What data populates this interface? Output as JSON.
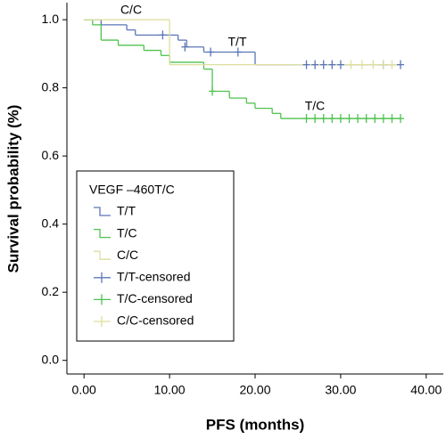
{
  "chart_data": {
    "type": "step",
    "xlabel": "PFS (months)",
    "ylabel": "Survival probability (%)",
    "xlim": [
      -2,
      42
    ],
    "ylim": [
      -0.04,
      1.05
    ],
    "xticks": [
      {
        "value": 0,
        "label": "0.00"
      },
      {
        "value": 10,
        "label": "10.00"
      },
      {
        "value": 20,
        "label": "20.00"
      },
      {
        "value": 30,
        "label": "30.00"
      },
      {
        "value": 40,
        "label": "40.00"
      }
    ],
    "yticks": [
      {
        "value": 0,
        "label": "0.0"
      },
      {
        "value": 0.2,
        "label": "0.2"
      },
      {
        "value": 0.4,
        "label": "0.4"
      },
      {
        "value": 0.6,
        "label": "0.6"
      },
      {
        "value": 0.8,
        "label": "0.8"
      },
      {
        "value": 1,
        "label": "1.0"
      }
    ],
    "legend_title": "VEGF –460T/C",
    "annotations": [
      "C/C",
      "T/T",
      "T/C"
    ],
    "series": [
      {
        "name": "T/T",
        "color": "#5b76b8",
        "kind": "step",
        "x": [
          0,
          2,
          5,
          6,
          11,
          12,
          14,
          20,
          37
        ],
        "values": [
          1.0,
          0.985,
          0.97,
          0.955,
          0.94,
          0.92,
          0.905,
          0.868,
          0.868
        ]
      },
      {
        "name": "T/C",
        "color": "#4fc24f",
        "kind": "step",
        "x": [
          0,
          1,
          2,
          4,
          7,
          9,
          10,
          14,
          15,
          17,
          19,
          20,
          22,
          23,
          37
        ],
        "values": [
          1.0,
          0.985,
          0.94,
          0.925,
          0.91,
          0.895,
          0.875,
          0.855,
          0.79,
          0.77,
          0.755,
          0.74,
          0.725,
          0.71,
          0.71
        ]
      },
      {
        "name": "C/C",
        "color": "#dede9e",
        "kind": "step",
        "x": [
          0,
          10,
          37
        ],
        "values": [
          1.0,
          0.868,
          0.868
        ]
      },
      {
        "name": "T/T-censored",
        "color": "#5b76b8",
        "kind": "censor",
        "x": [
          9.2,
          11.8,
          14.8,
          18,
          26,
          27,
          28,
          29,
          30,
          35,
          37
        ],
        "values": [
          0.955,
          0.92,
          0.905,
          0.905,
          0.868,
          0.868,
          0.868,
          0.868,
          0.868,
          0.868,
          0.868
        ]
      },
      {
        "name": "T/C-censored",
        "color": "#4fc24f",
        "kind": "censor",
        "x": [
          15,
          26,
          27,
          28,
          29,
          30,
          31,
          32,
          33,
          34,
          35,
          36,
          37
        ],
        "values": [
          0.79,
          0.71,
          0.71,
          0.71,
          0.71,
          0.71,
          0.71,
          0.71,
          0.71,
          0.71,
          0.71,
          0.71,
          0.71
        ]
      },
      {
        "name": "C/C-censored",
        "color": "#dede9e",
        "kind": "censor",
        "x": [
          31.2,
          32.5,
          33.8,
          35,
          36
        ],
        "values": [
          0.868,
          0.868,
          0.868,
          0.868,
          0.868
        ]
      }
    ]
  }
}
